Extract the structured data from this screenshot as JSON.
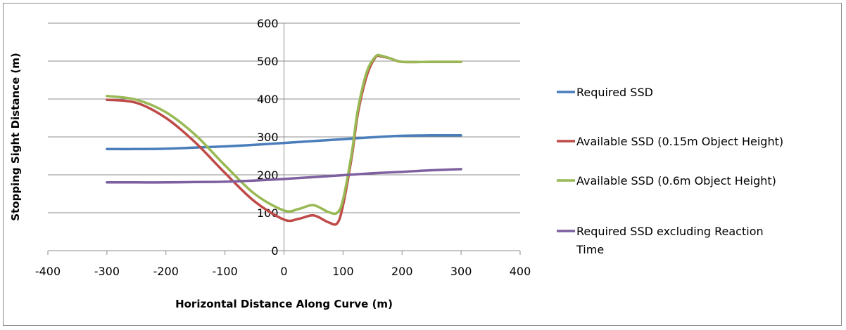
{
  "chart_data": {
    "type": "line",
    "title": "",
    "xlabel": "Horizontal Distance Along Curve (m)",
    "ylabel": "Stopping Sight Distance (m)",
    "xlim": [
      -400,
      400
    ],
    "ylim": [
      0,
      600
    ],
    "xticks": [
      -400,
      -300,
      -200,
      -100,
      0,
      100,
      200,
      300,
      400
    ],
    "yticks": [
      0,
      100,
      200,
      300,
      400,
      500,
      600
    ],
    "grid": "horizontal",
    "legend_position": "right",
    "series": [
      {
        "name": "Required SSD",
        "color": "#4a7ebb",
        "points": [
          [
            -300,
            268
          ],
          [
            -250,
            268
          ],
          [
            -200,
            269
          ],
          [
            -150,
            272
          ],
          [
            -100,
            275
          ],
          [
            -50,
            279
          ],
          [
            0,
            284
          ],
          [
            50,
            289
          ],
          [
            100,
            294
          ],
          [
            150,
            299
          ],
          [
            200,
            303
          ],
          [
            250,
            304
          ],
          [
            300,
            304
          ]
        ]
      },
      {
        "name": "Available SSD (0.15m Object Height)",
        "color": "#be4b48",
        "points": [
          [
            -300,
            398
          ],
          [
            -250,
            390
          ],
          [
            -200,
            350
          ],
          [
            -150,
            285
          ],
          [
            -100,
            205
          ],
          [
            -50,
            130
          ],
          [
            0,
            82
          ],
          [
            25,
            84
          ],
          [
            50,
            93
          ],
          [
            75,
            75
          ],
          [
            90,
            72
          ],
          [
            100,
            120
          ],
          [
            115,
            250
          ],
          [
            125,
            360
          ],
          [
            140,
            460
          ],
          [
            155,
            510
          ],
          [
            165,
            512
          ],
          [
            180,
            507
          ],
          [
            200,
            498
          ],
          [
            250,
            498
          ],
          [
            300,
            498
          ]
        ]
      },
      {
        "name": "Available SSD (0.6m Object Height)",
        "color": "#98b954",
        "points": [
          [
            -300,
            408
          ],
          [
            -250,
            398
          ],
          [
            -200,
            365
          ],
          [
            -150,
            305
          ],
          [
            -100,
            225
          ],
          [
            -50,
            150
          ],
          [
            0,
            106
          ],
          [
            25,
            110
          ],
          [
            50,
            120
          ],
          [
            75,
            102
          ],
          [
            90,
            100
          ],
          [
            100,
            135
          ],
          [
            115,
            260
          ],
          [
            125,
            370
          ],
          [
            140,
            470
          ],
          [
            155,
            512
          ],
          [
            165,
            514
          ],
          [
            180,
            507
          ],
          [
            200,
            498
          ],
          [
            250,
            498
          ],
          [
            300,
            498
          ]
        ]
      },
      {
        "name": "Required SSD excluding Reaction Time",
        "color": "#7d60a0",
        "points": [
          [
            -300,
            180
          ],
          [
            -250,
            180
          ],
          [
            -200,
            180
          ],
          [
            -150,
            181
          ],
          [
            -100,
            182
          ],
          [
            -50,
            185
          ],
          [
            0,
            189
          ],
          [
            50,
            194
          ],
          [
            100,
            199
          ],
          [
            150,
            204
          ],
          [
            200,
            208
          ],
          [
            250,
            212
          ],
          [
            300,
            215
          ]
        ]
      }
    ]
  },
  "legend": {
    "items": [
      {
        "lines": [
          "Required SSD"
        ]
      },
      {
        "lines": [
          "Available SSD (0.15m Object Height)"
        ]
      },
      {
        "lines": [
          "Available SSD (0.6m Object Height)"
        ]
      },
      {
        "lines": [
          "Required SSD excluding Reaction",
          "Time"
        ]
      }
    ]
  }
}
